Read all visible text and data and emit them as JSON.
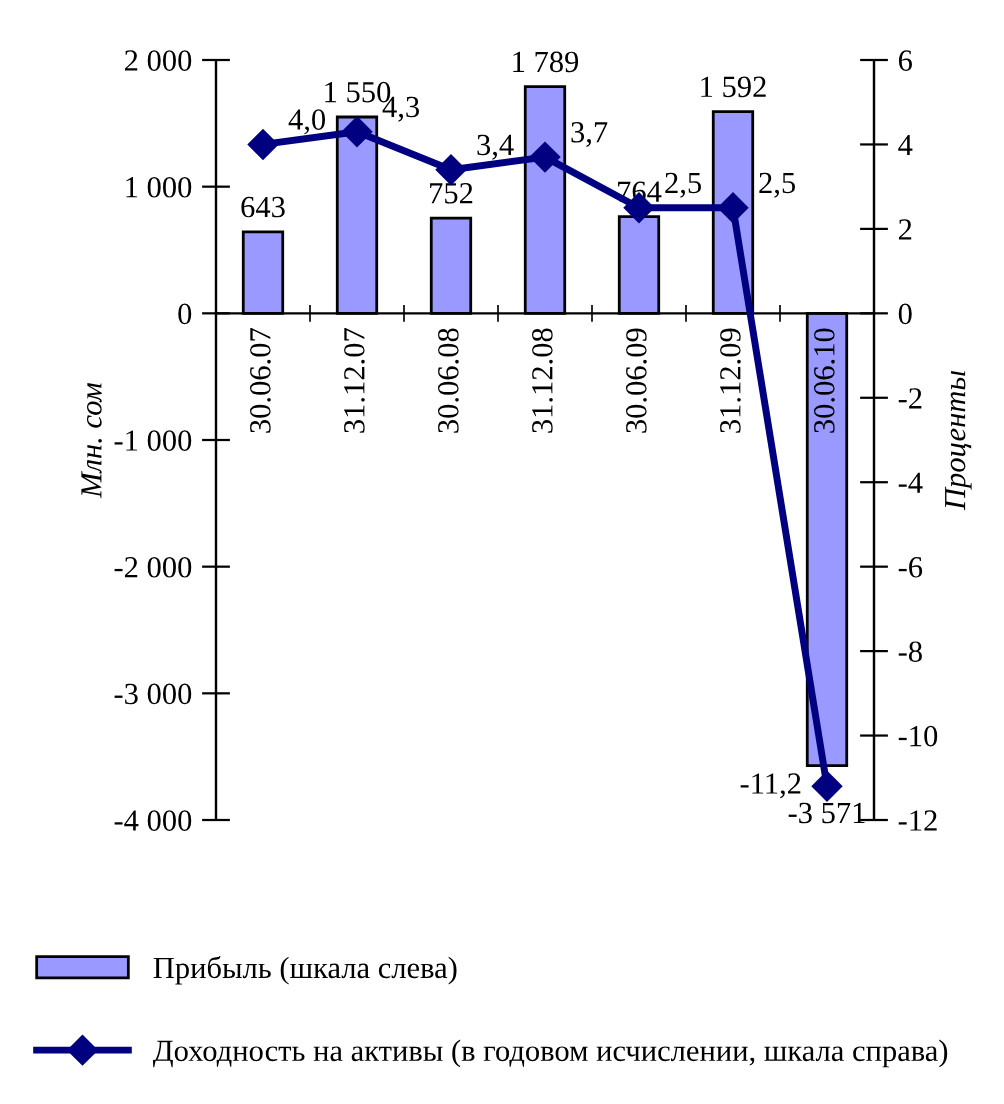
{
  "chart_data": {
    "type": "bar",
    "categories": [
      "30.06.07",
      "31.12.07",
      "30.06.08",
      "31.12.08",
      "30.06.09",
      "31.12.09",
      "30.06.10"
    ],
    "ylabel": "Млн. сом",
    "y2label": "Проценты",
    "series": [
      {
        "name": "Прибыль (шкала слева)",
        "color": "#9999ff",
        "values": [
          643,
          1550,
          752,
          1789,
          764,
          1592,
          -3571
        ],
        "value_labels": [
          "643",
          "1 550",
          "752",
          "1 789",
          "764",
          "1 592",
          "-3 571"
        ]
      },
      {
        "name": "Доходность на активы (в годовом исчислении, шкала справа)",
        "type": "line",
        "axis": "y2",
        "color": "#000080",
        "marker": "diamond",
        "values": [
          4.0,
          4.3,
          3.4,
          3.7,
          2.5,
          2.5,
          -11.2
        ],
        "value_labels": [
          "4,0",
          "4,3",
          "3,4",
          "3,7",
          "2,5",
          "2,5",
          "-11,2"
        ]
      }
    ],
    "ylim": [
      -4000,
      2000
    ],
    "yticks": [
      {
        "value": -4000,
        "label": "-4 000"
      },
      {
        "value": -3000,
        "label": "-3 000"
      },
      {
        "value": -2000,
        "label": "-2 000"
      },
      {
        "value": -1000,
        "label": "-1 000"
      },
      0,
      {
        "value": 1000,
        "label": "1 000"
      },
      {
        "value": 2000,
        "label": "2 000"
      }
    ],
    "y2lim": [
      -12,
      6
    ],
    "y2ticks": [
      -12,
      -10,
      -8,
      -6,
      -4,
      -2,
      0,
      2,
      4,
      6
    ],
    "grid": false,
    "legend": "bottom"
  }
}
